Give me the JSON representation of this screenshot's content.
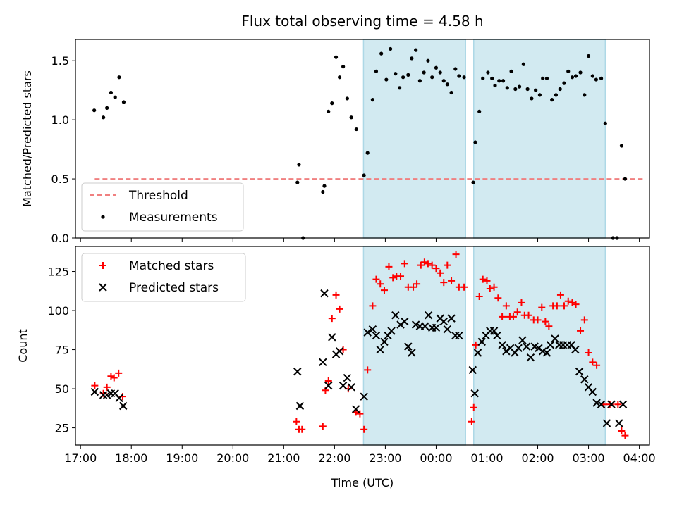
{
  "figure": {
    "title": "Flux total observing time = 4.58 h",
    "xlabel": "Time (UTC)"
  },
  "colors": {
    "shade": "#add8e6",
    "threshold": "#f08080",
    "matched": "#ff0000",
    "predicted": "#000000",
    "measurement": "#000000"
  },
  "chart_data": [
    {
      "type": "scatter",
      "title": "Flux total observing time = 4.58 h",
      "xlabel": "",
      "ylabel": "Matched/Predicted stars",
      "xlim": [
        16.9,
        28.2
      ],
      "ylim": [
        0,
        1.68
      ],
      "x_ticks": [
        17,
        18,
        19,
        20,
        21,
        22,
        23,
        24,
        25,
        26,
        27,
        28
      ],
      "y_ticks": [
        0.0,
        0.5,
        1.0,
        1.5
      ],
      "y_tick_labels": [
        "0.0",
        "0.5",
        "1.0",
        "1.5"
      ],
      "shaded_intervals": [
        [
          22.57,
          24.58
        ],
        [
          24.74,
          27.33
        ]
      ],
      "threshold": {
        "name": "Threshold",
        "y": 0.5,
        "x_range": [
          17.28,
          28.1
        ]
      },
      "legend": {
        "placement": "lower-left",
        "entries": [
          "Threshold",
          "Measurements"
        ]
      },
      "series": [
        {
          "name": "Measurements",
          "marker": "dot",
          "points": [
            [
              17.27,
              1.08
            ],
            [
              17.45,
              1.02
            ],
            [
              17.52,
              1.1
            ],
            [
              17.6,
              1.23
            ],
            [
              17.68,
              1.19
            ],
            [
              17.76,
              1.36
            ],
            [
              17.85,
              1.15
            ],
            [
              21.27,
              0.47
            ],
            [
              21.3,
              0.62
            ],
            [
              21.38,
              0.0
            ],
            [
              21.77,
              0.39
            ],
            [
              21.8,
              0.44
            ],
            [
              21.88,
              1.07
            ],
            [
              21.95,
              1.14
            ],
            [
              22.03,
              1.53
            ],
            [
              22.1,
              1.36
            ],
            [
              22.17,
              1.45
            ],
            [
              22.25,
              1.18
            ],
            [
              22.33,
              1.02
            ],
            [
              22.43,
              0.92
            ],
            [
              22.58,
              0.53
            ],
            [
              22.65,
              0.72
            ],
            [
              22.75,
              1.17
            ],
            [
              22.82,
              1.41
            ],
            [
              22.92,
              1.56
            ],
            [
              23.02,
              1.34
            ],
            [
              23.1,
              1.6
            ],
            [
              23.2,
              1.39
            ],
            [
              23.28,
              1.27
            ],
            [
              23.35,
              1.36
            ],
            [
              23.45,
              1.38
            ],
            [
              23.52,
              1.52
            ],
            [
              23.6,
              1.59
            ],
            [
              23.68,
              1.33
            ],
            [
              23.76,
              1.4
            ],
            [
              23.84,
              1.5
            ],
            [
              23.92,
              1.36
            ],
            [
              24.0,
              1.44
            ],
            [
              24.08,
              1.4
            ],
            [
              24.15,
              1.33
            ],
            [
              24.22,
              1.3
            ],
            [
              24.3,
              1.23
            ],
            [
              24.38,
              1.43
            ],
            [
              24.45,
              1.37
            ],
            [
              24.55,
              1.36
            ],
            [
              24.73,
              0.47
            ],
            [
              24.77,
              0.81
            ],
            [
              24.85,
              1.07
            ],
            [
              24.92,
              1.35
            ],
            [
              25.02,
              1.4
            ],
            [
              25.1,
              1.35
            ],
            [
              25.16,
              1.29
            ],
            [
              25.24,
              1.33
            ],
            [
              25.32,
              1.33
            ],
            [
              25.4,
              1.27
            ],
            [
              25.48,
              1.41
            ],
            [
              25.56,
              1.26
            ],
            [
              25.64,
              1.28
            ],
            [
              25.72,
              1.47
            ],
            [
              25.8,
              1.26
            ],
            [
              25.88,
              1.18
            ],
            [
              25.96,
              1.25
            ],
            [
              26.04,
              1.21
            ],
            [
              26.1,
              1.35
            ],
            [
              26.18,
              1.35
            ],
            [
              26.28,
              1.17
            ],
            [
              26.36,
              1.21
            ],
            [
              26.44,
              1.26
            ],
            [
              26.52,
              1.31
            ],
            [
              26.6,
              1.41
            ],
            [
              26.68,
              1.36
            ],
            [
              26.75,
              1.37
            ],
            [
              26.84,
              1.4
            ],
            [
              26.92,
              1.21
            ],
            [
              27.0,
              1.54
            ],
            [
              27.08,
              1.37
            ],
            [
              27.15,
              1.34
            ],
            [
              27.25,
              1.35
            ],
            [
              27.33,
              0.97
            ],
            [
              27.48,
              0.0
            ],
            [
              27.56,
              0.0
            ],
            [
              27.65,
              0.78
            ],
            [
              27.72,
              0.5
            ]
          ]
        }
      ]
    },
    {
      "type": "scatter",
      "title": "",
      "xlabel": "Time (UTC)",
      "ylabel": "Count",
      "xlim": [
        16.9,
        28.2
      ],
      "ylim": [
        14,
        141
      ],
      "x_ticks": [
        17,
        18,
        19,
        20,
        21,
        22,
        23,
        24,
        25,
        26,
        27,
        28
      ],
      "x_tick_labels": [
        "17:00",
        "18:00",
        "19:00",
        "20:00",
        "21:00",
        "22:00",
        "23:00",
        "00:00",
        "01:00",
        "02:00",
        "03:00",
        "04:00"
      ],
      "y_ticks": [
        25,
        50,
        75,
        100,
        125
      ],
      "y_tick_labels": [
        "25",
        "50",
        "75",
        "100",
        "125"
      ],
      "shaded_intervals": [
        [
          22.57,
          24.58
        ],
        [
          24.74,
          27.33
        ]
      ],
      "legend": {
        "placement": "top-left",
        "entries": [
          "Matched stars",
          "Predicted stars"
        ]
      },
      "series": [
        {
          "name": "Matched stars",
          "marker": "plus",
          "points": [
            [
              17.28,
              52
            ],
            [
              17.45,
              47
            ],
            [
              17.52,
              51
            ],
            [
              17.6,
              58
            ],
            [
              17.66,
              57
            ],
            [
              17.75,
              60
            ],
            [
              17.83,
              45
            ],
            [
              21.25,
              29
            ],
            [
              21.3,
              24
            ],
            [
              21.36,
              24
            ],
            [
              21.77,
              26
            ],
            [
              21.82,
              49
            ],
            [
              21.88,
              55
            ],
            [
              21.95,
              95
            ],
            [
              22.03,
              110
            ],
            [
              22.1,
              101
            ],
            [
              22.17,
              75
            ],
            [
              22.27,
              50
            ],
            [
              22.42,
              35
            ],
            [
              22.5,
              34
            ],
            [
              22.58,
              24
            ],
            [
              22.65,
              62
            ],
            [
              22.75,
              103
            ],
            [
              22.82,
              120
            ],
            [
              22.9,
              117
            ],
            [
              22.98,
              113
            ],
            [
              23.07,
              128
            ],
            [
              23.15,
              121
            ],
            [
              23.22,
              122
            ],
            [
              23.3,
              122
            ],
            [
              23.38,
              130
            ],
            [
              23.45,
              115
            ],
            [
              23.55,
              115
            ],
            [
              23.62,
              117
            ],
            [
              23.7,
              129
            ],
            [
              23.77,
              131
            ],
            [
              23.84,
              130
            ],
            [
              23.92,
              129
            ],
            [
              24.0,
              127
            ],
            [
              24.08,
              124
            ],
            [
              24.15,
              118
            ],
            [
              24.22,
              129
            ],
            [
              24.3,
              119
            ],
            [
              24.39,
              136
            ],
            [
              24.45,
              115
            ],
            [
              24.55,
              115
            ],
            [
              24.7,
              29
            ],
            [
              24.74,
              38
            ],
            [
              24.78,
              78
            ],
            [
              24.85,
              109
            ],
            [
              24.92,
              120
            ],
            [
              25.0,
              119
            ],
            [
              25.06,
              114
            ],
            [
              25.14,
              115
            ],
            [
              25.22,
              108
            ],
            [
              25.3,
              96
            ],
            [
              25.38,
              103
            ],
            [
              25.45,
              96
            ],
            [
              25.52,
              96
            ],
            [
              25.6,
              99
            ],
            [
              25.68,
              105
            ],
            [
              25.74,
              97
            ],
            [
              25.82,
              97
            ],
            [
              25.92,
              94
            ],
            [
              26.0,
              94
            ],
            [
              26.08,
              102
            ],
            [
              26.15,
              93
            ],
            [
              26.22,
              90
            ],
            [
              26.3,
              103
            ],
            [
              26.38,
              103
            ],
            [
              26.45,
              110
            ],
            [
              26.52,
              103
            ],
            [
              26.6,
              106
            ],
            [
              26.68,
              105
            ],
            [
              26.75,
              104
            ],
            [
              26.84,
              87
            ],
            [
              26.92,
              94
            ],
            [
              27.0,
              73
            ],
            [
              27.08,
              67
            ],
            [
              27.16,
              65
            ],
            [
              27.3,
              40
            ],
            [
              27.42,
              40
            ],
            [
              27.58,
              40
            ],
            [
              27.65,
              23
            ],
            [
              27.72,
              20
            ]
          ]
        },
        {
          "name": "Predicted stars",
          "marker": "x",
          "points": [
            [
              17.28,
              48
            ],
            [
              17.45,
              46
            ],
            [
              17.52,
              46
            ],
            [
              17.6,
              47
            ],
            [
              17.68,
              47
            ],
            [
              17.76,
              44
            ],
            [
              17.84,
              39
            ],
            [
              21.27,
              61
            ],
            [
              21.32,
              39
            ],
            [
              21.77,
              67
            ],
            [
              21.8,
              111
            ],
            [
              21.88,
              52
            ],
            [
              21.95,
              83
            ],
            [
              22.03,
              72
            ],
            [
              22.1,
              74
            ],
            [
              22.17,
              52
            ],
            [
              22.25,
              57
            ],
            [
              22.33,
              51
            ],
            [
              22.42,
              37
            ],
            [
              22.58,
              45
            ],
            [
              22.65,
              86
            ],
            [
              22.75,
              88
            ],
            [
              22.82,
              84
            ],
            [
              22.9,
              75
            ],
            [
              22.98,
              80
            ],
            [
              23.05,
              84
            ],
            [
              23.12,
              87
            ],
            [
              23.2,
              97
            ],
            [
              23.3,
              91
            ],
            [
              23.38,
              93
            ],
            [
              23.45,
              77
            ],
            [
              23.52,
              73
            ],
            [
              23.6,
              91
            ],
            [
              23.68,
              90
            ],
            [
              23.78,
              90
            ],
            [
              23.85,
              97
            ],
            [
              23.92,
              89
            ],
            [
              24.0,
              89
            ],
            [
              24.08,
              95
            ],
            [
              24.15,
              93
            ],
            [
              24.22,
              88
            ],
            [
              24.3,
              95
            ],
            [
              24.38,
              84
            ],
            [
              24.45,
              84
            ],
            [
              24.72,
              62
            ],
            [
              24.76,
              47
            ],
            [
              24.82,
              73
            ],
            [
              24.9,
              80
            ],
            [
              24.98,
              84
            ],
            [
              25.06,
              87
            ],
            [
              25.14,
              87
            ],
            [
              25.2,
              84
            ],
            [
              25.3,
              78
            ],
            [
              25.38,
              74
            ],
            [
              25.46,
              76
            ],
            [
              25.55,
              73
            ],
            [
              25.62,
              76
            ],
            [
              25.7,
              81
            ],
            [
              25.78,
              77
            ],
            [
              25.86,
              70
            ],
            [
              25.94,
              77
            ],
            [
              26.02,
              76
            ],
            [
              26.1,
              74
            ],
            [
              26.18,
              73
            ],
            [
              26.25,
              78
            ],
            [
              26.34,
              82
            ],
            [
              26.42,
              78
            ],
            [
              26.5,
              78
            ],
            [
              26.58,
              78
            ],
            [
              26.66,
              78
            ],
            [
              26.74,
              75
            ],
            [
              26.82,
              61
            ],
            [
              26.92,
              56
            ],
            [
              27.0,
              51
            ],
            [
              27.08,
              48
            ],
            [
              27.16,
              41
            ],
            [
              27.25,
              40
            ],
            [
              27.36,
              28
            ],
            [
              27.45,
              40
            ],
            [
              27.6,
              28
            ],
            [
              27.68,
              40
            ]
          ]
        }
      ]
    }
  ]
}
